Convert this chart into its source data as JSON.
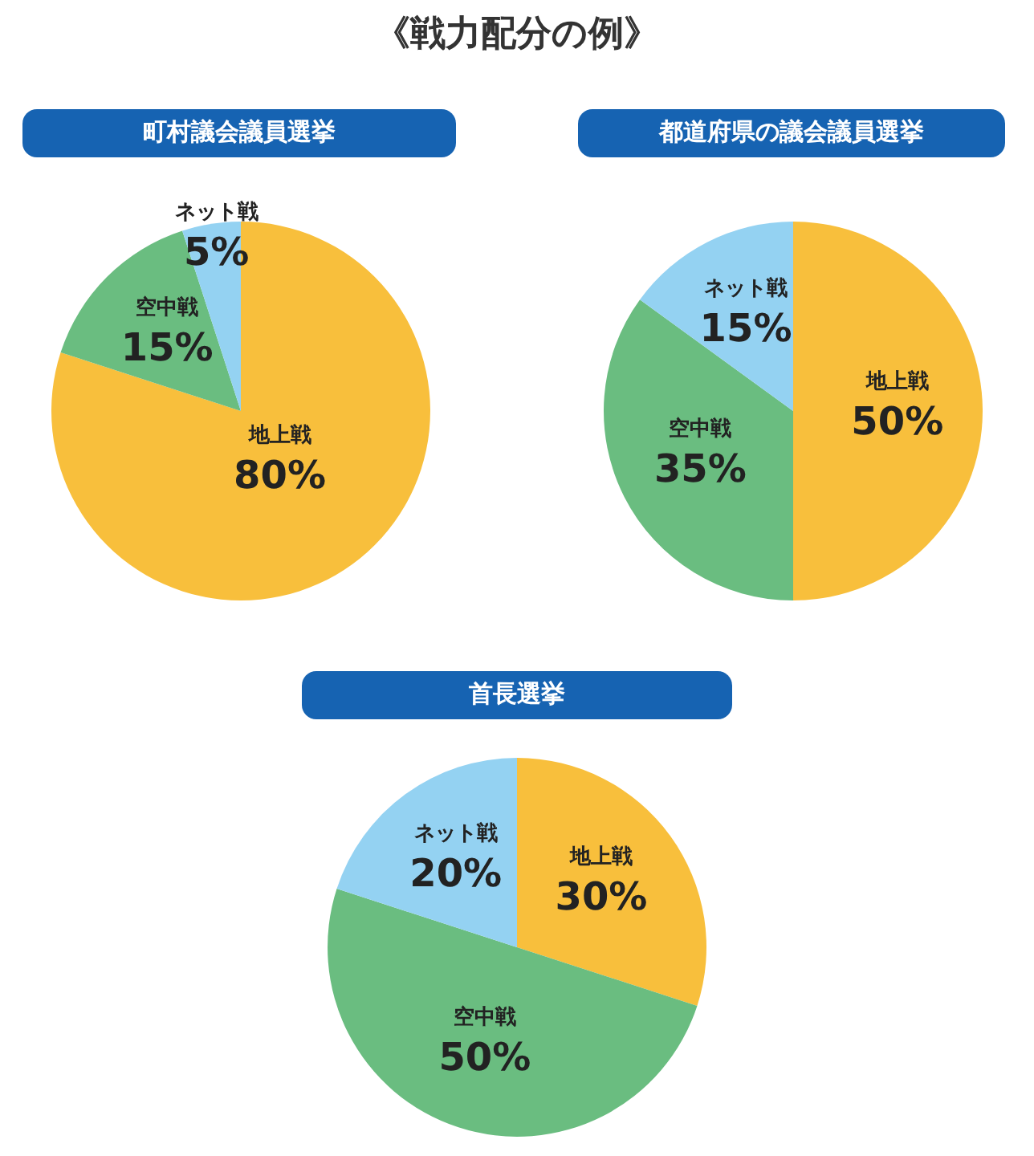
{
  "chart_data": [
    {
      "type": "other",
      "title": "《戦力配分の例》"
    },
    {
      "type": "pie",
      "title": "町村議会議員選挙",
      "categories": [
        "地上戦",
        "空中戦",
        "ネット戦"
      ],
      "values": [
        80,
        15,
        5
      ],
      "value_labels": [
        "80%",
        "15%",
        "5%"
      ],
      "colors": [
        "#f8bf3c",
        "#6abd80",
        "#94d2f2"
      ]
    },
    {
      "type": "pie",
      "title": "都道府県の議会議員選挙",
      "categories": [
        "地上戦",
        "空中戦",
        "ネット戦"
      ],
      "values": [
        50,
        35,
        15
      ],
      "value_labels": [
        "50%",
        "35%",
        "15%"
      ],
      "colors": [
        "#f8bf3c",
        "#6abd80",
        "#94d2f2"
      ]
    },
    {
      "type": "pie",
      "title": "首長選挙",
      "categories": [
        "地上戦",
        "空中戦",
        "ネット戦"
      ],
      "values": [
        30,
        50,
        20
      ],
      "value_labels": [
        "30%",
        "50%",
        "20%"
      ],
      "colors": [
        "#f8bf3c",
        "#6abd80",
        "#94d2f2"
      ]
    }
  ]
}
